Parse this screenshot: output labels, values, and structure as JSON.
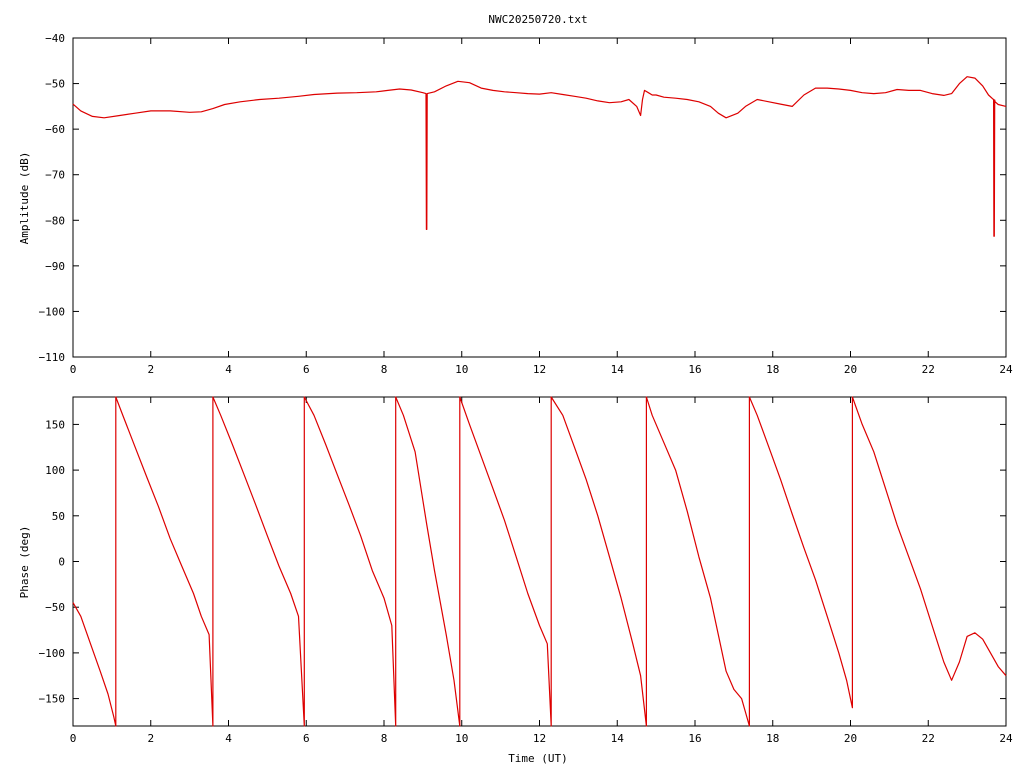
{
  "title": "NWC20250720.txt",
  "colors": {
    "trace": "#dd0000",
    "axis": "#000000",
    "background": "#ffffff"
  },
  "chart_data": [
    {
      "type": "line",
      "title": "NWC20250720.txt",
      "xlabel": "",
      "ylabel": "Amplitude (dB)",
      "xlim": [
        0,
        24
      ],
      "ylim": [
        -110,
        -40
      ],
      "xticks": [
        0,
        2,
        4,
        6,
        8,
        10,
        12,
        14,
        16,
        18,
        20,
        22,
        24
      ],
      "yticks": [
        -40,
        -50,
        -60,
        -70,
        -80,
        -90,
        -100,
        -110
      ],
      "grid": false,
      "legend": "none",
      "series": [
        {
          "color": "#dd0000",
          "x": [
            0,
            0.2,
            0.5,
            0.8,
            1.2,
            1.6,
            2.0,
            2.5,
            3.0,
            3.3,
            3.6,
            3.9,
            4.3,
            4.8,
            5.3,
            5.8,
            6.2,
            6.8,
            7.3,
            7.8,
            8.1,
            8.4,
            8.7,
            9.0,
            9.08,
            9.09,
            9.1,
            9.11,
            9.3,
            9.6,
            9.9,
            10.2,
            10.5,
            10.8,
            11.1,
            11.4,
            11.7,
            12.0,
            12.3,
            12.6,
            12.9,
            13.2,
            13.5,
            13.8,
            14.1,
            14.3,
            14.5,
            14.6,
            14.65,
            14.7,
            14.8,
            14.9,
            15.0,
            15.2,
            15.5,
            15.8,
            16.1,
            16.4,
            16.6,
            16.8,
            17.1,
            17.3,
            17.6,
            17.9,
            18.2,
            18.5,
            18.8,
            19.1,
            19.4,
            19.7,
            20.0,
            20.3,
            20.6,
            20.9,
            21.2,
            21.5,
            21.8,
            22.1,
            22.4,
            22.6,
            22.8,
            23.0,
            23.2,
            23.4,
            23.55,
            23.65,
            23.68,
            23.69,
            23.7,
            23.71,
            23.72,
            23.8,
            24.0
          ],
          "y": [
            -54.5,
            -56,
            -57.2,
            -57.5,
            -57,
            -56.5,
            -56,
            -56,
            -56.3,
            -56.2,
            -55.5,
            -54.6,
            -54,
            -53.5,
            -53.2,
            -52.8,
            -52.4,
            -52.1,
            -52,
            -51.8,
            -51.5,
            -51.2,
            -51.4,
            -52,
            -52.2,
            -82,
            -82,
            -52.2,
            -51.8,
            -50.5,
            -49.5,
            -49.8,
            -51,
            -51.5,
            -51.8,
            -52,
            -52.2,
            -52.3,
            -52,
            -52.4,
            -52.8,
            -53.2,
            -53.8,
            -54.2,
            -54,
            -53.5,
            -55,
            -57,
            -53.5,
            -51.5,
            -52,
            -52.5,
            -52.5,
            -53,
            -53.2,
            -53.5,
            -54,
            -55,
            -56.5,
            -57.5,
            -56.5,
            -55,
            -53.5,
            -54,
            -54.5,
            -55,
            -52.5,
            -51,
            -51,
            -51.2,
            -51.5,
            -52,
            -52.2,
            -52,
            -51.3,
            -51.5,
            -51.5,
            -52.2,
            -52.6,
            -52.2,
            -50,
            -48.5,
            -48.8,
            -50.5,
            -52.5,
            -53.3,
            -53.5,
            -83.5,
            -83.5,
            -53.6,
            -54,
            -54.6,
            -55
          ]
        }
      ]
    },
    {
      "type": "line",
      "title": "",
      "xlabel": "Time (UT)",
      "ylabel": "Phase (deg)",
      "xlim": [
        0,
        24
      ],
      "ylim": [
        -180,
        180
      ],
      "xticks": [
        0,
        2,
        4,
        6,
        8,
        10,
        12,
        14,
        16,
        18,
        20,
        22,
        24
      ],
      "yticks": [
        150,
        100,
        50,
        0,
        -50,
        -100,
        -150
      ],
      "grid": false,
      "legend": "none",
      "series": [
        {
          "color": "#dd0000",
          "x": [
            0,
            0.2,
            0.45,
            0.7,
            0.9,
            1.05,
            1.1,
            1.1,
            1.3,
            1.6,
            1.9,
            2.2,
            2.5,
            2.8,
            3.1,
            3.3,
            3.5,
            3.6,
            3.6,
            3.8,
            4.1,
            4.4,
            4.7,
            5.0,
            5.3,
            5.6,
            5.8,
            5.95,
            5.95,
            6.2,
            6.5,
            6.8,
            7.1,
            7.4,
            7.7,
            8.0,
            8.2,
            8.3,
            8.3,
            8.5,
            8.8,
            9.1,
            9.3,
            9.6,
            9.8,
            9.95,
            9.95,
            10.2,
            10.5,
            10.8,
            11.1,
            11.4,
            11.7,
            12.0,
            12.2,
            12.3,
            12.3,
            12.6,
            12.9,
            13.2,
            13.5,
            13.8,
            14.1,
            14.4,
            14.6,
            14.75,
            14.75,
            14.9,
            15.2,
            15.5,
            15.8,
            16.1,
            16.4,
            16.6,
            16.8,
            17.0,
            17.2,
            17.4,
            17.4,
            17.6,
            17.9,
            18.2,
            18.5,
            18.8,
            19.1,
            19.4,
            19.7,
            19.9,
            20.05,
            20.05,
            20.3,
            20.6,
            20.9,
            21.2,
            21.5,
            21.8,
            22.1,
            22.4,
            22.6,
            22.8,
            23.0,
            23.2,
            23.4,
            23.6,
            23.8,
            24.0
          ],
          "y": [
            -45,
            -60,
            -90,
            -120,
            -145,
            -170,
            -180,
            180,
            158,
            125,
            92,
            60,
            25,
            -5,
            -35,
            -60,
            -80,
            -180,
            180,
            160,
            128,
            95,
            62,
            28,
            -5,
            -35,
            -60,
            -180,
            180,
            160,
            128,
            95,
            62,
            28,
            -10,
            -40,
            -70,
            -180,
            180,
            160,
            120,
            40,
            -10,
            -80,
            -130,
            -180,
            180,
            150,
            115,
            80,
            45,
            5,
            -35,
            -70,
            -90,
            -180,
            180,
            160,
            125,
            90,
            50,
            5,
            -40,
            -90,
            -125,
            -180,
            180,
            160,
            130,
            100,
            55,
            5,
            -40,
            -80,
            -120,
            -140,
            -150,
            -180,
            180,
            160,
            125,
            90,
            52,
            15,
            -20,
            -60,
            -100,
            -130,
            -160,
            180,
            150,
            120,
            80,
            40,
            5,
            -30,
            -70,
            -110,
            -130,
            -110,
            -82,
            -78,
            -85,
            -100,
            -115,
            -125
          ]
        }
      ]
    }
  ]
}
